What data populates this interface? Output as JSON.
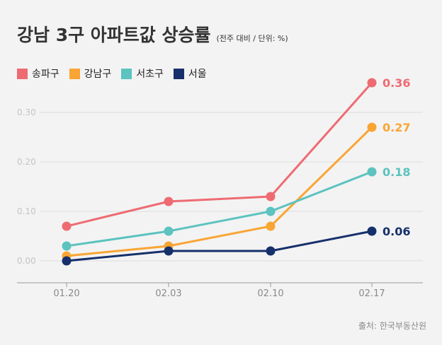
{
  "title": "강남 3구 아파트값 상승률",
  "subtitle": "(전주 대비 / 단위: %)",
  "source": "출처: 한국부동산원",
  "chart_data": {
    "type": "line",
    "x": [
      "01.20",
      "02.03",
      "02.10",
      "02.17"
    ],
    "ylim": [
      -0.04,
      0.33
    ],
    "yticks": [
      0.0,
      0.1,
      0.2,
      0.3
    ],
    "ytick_labels": [
      "0.00",
      "0.10",
      "0.20",
      "0.30"
    ],
    "grid": true,
    "legend_position": "top-left",
    "series": [
      {
        "name": "송파구",
        "color": "#ee6b72",
        "values": [
          0.07,
          0.12,
          0.13,
          0.36
        ],
        "end_label": "0.36"
      },
      {
        "name": "강남구",
        "color": "#f9a534",
        "values": [
          0.01,
          0.03,
          0.07,
          0.27
        ],
        "end_label": "0.27"
      },
      {
        "name": "서초구",
        "color": "#5cc3bf",
        "values": [
          0.03,
          0.06,
          0.1,
          0.18
        ],
        "end_label": "0.18"
      },
      {
        "name": "서울",
        "color": "#16306b",
        "values": [
          0.0,
          0.02,
          0.02,
          0.06
        ],
        "end_label": "0.06"
      }
    ]
  }
}
